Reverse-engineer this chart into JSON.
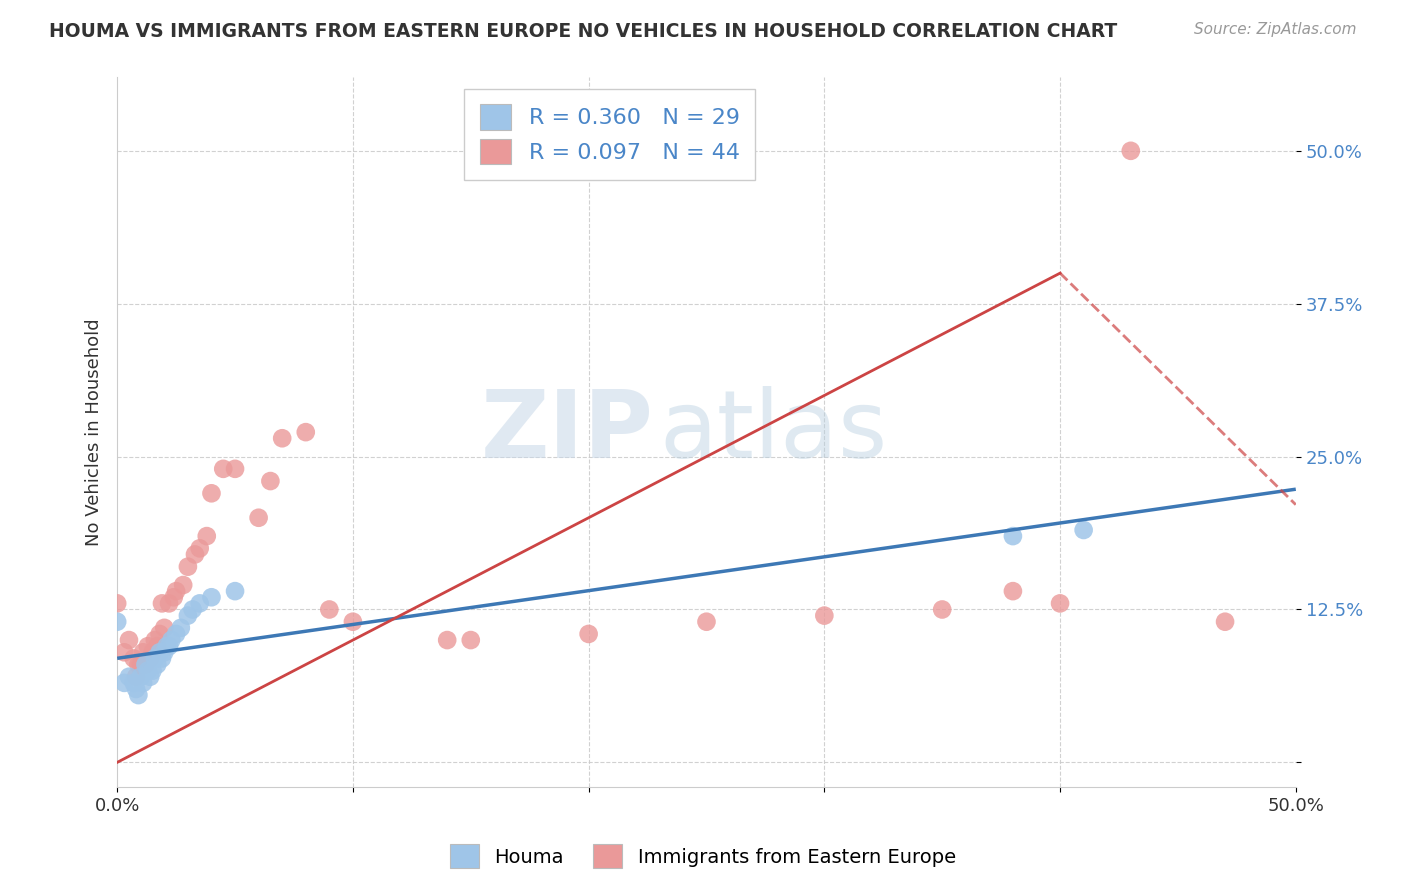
{
  "title": "HOUMA VS IMMIGRANTS FROM EASTERN EUROPE NO VEHICLES IN HOUSEHOLD CORRELATION CHART",
  "source": "Source: ZipAtlas.com",
  "ylabel": "No Vehicles in Household",
  "xlim": [
    0.0,
    0.5
  ],
  "ylim": [
    -0.02,
    0.56
  ],
  "ytick_positions": [
    0.0,
    0.125,
    0.25,
    0.375,
    0.5
  ],
  "ytick_labels": [
    "",
    "12.5%",
    "25.0%",
    "37.5%",
    "50.0%"
  ],
  "houma_color": "#9fc5e8",
  "immigrants_color": "#ea9999",
  "houma_line_color": "#3d78b5",
  "immigrants_line_color": "#cc4444",
  "R_houma": 0.36,
  "N_houma": 29,
  "R_immigrants": 0.097,
  "N_immigrants": 44,
  "legend_labels": [
    "Houma",
    "Immigrants from Eastern Europe"
  ],
  "watermark_zip": "ZIP",
  "watermark_atlas": "atlas",
  "houma_x": [
    0.0,
    0.003,
    0.005,
    0.007,
    0.008,
    0.009,
    0.01,
    0.011,
    0.012,
    0.013,
    0.014,
    0.015,
    0.016,
    0.017,
    0.018,
    0.019,
    0.02,
    0.021,
    0.022,
    0.023,
    0.025,
    0.027,
    0.03,
    0.032,
    0.035,
    0.04,
    0.05,
    0.38,
    0.41
  ],
  "houma_y": [
    0.115,
    0.065,
    0.07,
    0.065,
    0.06,
    0.055,
    0.07,
    0.065,
    0.08,
    0.075,
    0.07,
    0.075,
    0.085,
    0.08,
    0.09,
    0.085,
    0.09,
    0.095,
    0.095,
    0.1,
    0.105,
    0.11,
    0.12,
    0.125,
    0.13,
    0.135,
    0.14,
    0.185,
    0.19
  ],
  "immigrants_x": [
    0.0,
    0.003,
    0.005,
    0.007,
    0.008,
    0.009,
    0.01,
    0.011,
    0.012,
    0.013,
    0.014,
    0.015,
    0.016,
    0.017,
    0.018,
    0.019,
    0.02,
    0.022,
    0.024,
    0.025,
    0.028,
    0.03,
    0.033,
    0.035,
    0.038,
    0.04,
    0.045,
    0.05,
    0.06,
    0.065,
    0.07,
    0.08,
    0.09,
    0.1,
    0.14,
    0.15,
    0.2,
    0.25,
    0.3,
    0.35,
    0.38,
    0.4,
    0.43,
    0.47
  ],
  "immigrants_y": [
    0.13,
    0.09,
    0.1,
    0.085,
    0.07,
    0.08,
    0.08,
    0.09,
    0.08,
    0.095,
    0.085,
    0.09,
    0.1,
    0.095,
    0.105,
    0.13,
    0.11,
    0.13,
    0.135,
    0.14,
    0.145,
    0.16,
    0.17,
    0.175,
    0.185,
    0.22,
    0.24,
    0.24,
    0.2,
    0.23,
    0.265,
    0.27,
    0.125,
    0.115,
    0.1,
    0.1,
    0.105,
    0.115,
    0.12,
    0.125,
    0.14,
    0.13,
    0.5,
    0.115
  ]
}
